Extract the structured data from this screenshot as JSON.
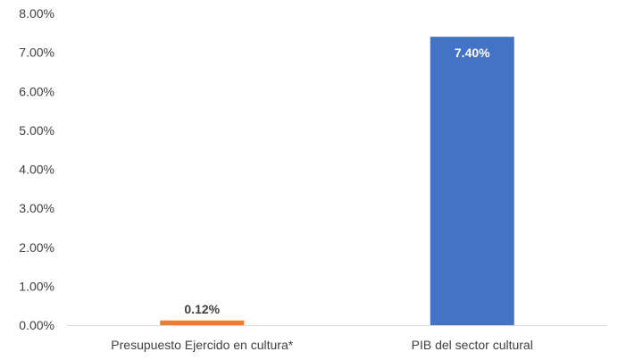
{
  "chart_data": {
    "type": "bar",
    "title": "",
    "xlabel": "",
    "ylabel": "",
    "categories": [
      "Presupuesto Ejercido en cultura*",
      "PIB del sector cultural"
    ],
    "values": [
      0.12,
      7.4
    ],
    "data_labels": [
      "0.12%",
      "7.40%"
    ],
    "bar_colors": [
      "#ED7D31",
      "#4472C4"
    ],
    "data_label_colors": [
      "#404040",
      "#FFFFFF"
    ],
    "data_label_positions": [
      "outside-end",
      "inside-end"
    ],
    "ylim": [
      0,
      8
    ],
    "yticks": [
      0,
      1,
      2,
      3,
      4,
      5,
      6,
      7,
      8
    ],
    "ytick_labels": [
      "0.00%",
      "1.00%",
      "2.00%",
      "3.00%",
      "4.00%",
      "5.00%",
      "6.00%",
      "7.00%",
      "8.00%"
    ],
    "grid": false,
    "legend": "none",
    "axis_color": "#D9D9D9"
  }
}
